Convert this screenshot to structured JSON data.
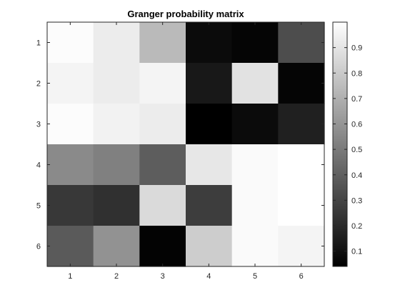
{
  "chart_data": {
    "type": "heatmap",
    "title": "Granger probability matrix",
    "xlabel": "",
    "ylabel": "",
    "x_ticks": [
      "1",
      "2",
      "3",
      "4",
      "5",
      "6"
    ],
    "y_ticks": [
      "1",
      "2",
      "3",
      "4",
      "5",
      "6"
    ],
    "colormap": "gray",
    "clim": [
      0.04,
      1.0
    ],
    "colorbar_ticks": [
      "0.1",
      "0.2",
      "0.3",
      "0.4",
      "0.5",
      "0.6",
      "0.7",
      "0.8",
      "0.9"
    ],
    "matrix": [
      [
        0.99,
        0.93,
        0.74,
        0.08,
        0.06,
        0.33
      ],
      [
        0.96,
        0.93,
        0.96,
        0.13,
        0.89,
        0.06
      ],
      [
        0.99,
        0.95,
        0.93,
        0.04,
        0.08,
        0.16
      ],
      [
        0.56,
        0.52,
        0.39,
        0.91,
        0.98,
        1.0
      ],
      [
        0.25,
        0.22,
        0.86,
        0.27,
        0.98,
        1.0
      ],
      [
        0.38,
        0.59,
        0.05,
        0.81,
        0.98,
        0.96
      ]
    ]
  }
}
